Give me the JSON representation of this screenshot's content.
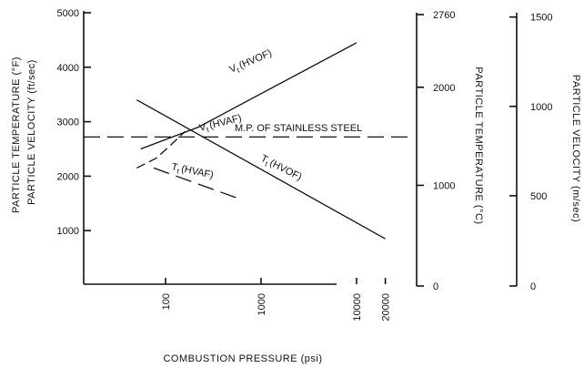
{
  "chart_data": {
    "type": "line",
    "x_axis": {
      "label": "COMBUSTION PRESSURE (psi)",
      "scale": "log",
      "ticks": [
        100,
        1000,
        10000,
        20000
      ],
      "tick_labels": [
        "100",
        "1000",
        "10000",
        "20000"
      ]
    },
    "y_axis_left": {
      "labels": [
        "PARTICLE TEMPERATURE (°F)",
        "PARTICLE VELOCITY (ft/sec)"
      ],
      "ticks": [
        1000,
        2000,
        3000,
        4000,
        5000
      ],
      "tick_labels": [
        "1000",
        "2000",
        "3000",
        "4000",
        "5000"
      ],
      "range": [
        0,
        5000
      ]
    },
    "y_axis_right_1": {
      "label": "PARTICLE TEMPERATURE (°C)",
      "ticks": [
        0,
        1000,
        2000,
        2760
      ],
      "tick_labels": [
        "0",
        "1000",
        "2000",
        "2760"
      ]
    },
    "y_axis_right_2": {
      "label": "PARTICLE VELOCITY (m/sec)",
      "ticks": [
        0,
        500,
        1000,
        1500
      ],
      "tick_labels": [
        "0",
        "500",
        "1000",
        "1500"
      ]
    },
    "series": [
      {
        "name": "V_t (HVOF)",
        "x": [
          55,
          220,
          10000
        ],
        "y": [
          2500,
          2900,
          4450
        ]
      },
      {
        "name": "T_t (HVOF)",
        "x": [
          50,
          20000
        ],
        "y": [
          3400,
          850
        ]
      },
      {
        "name": "V_t (HVAF)",
        "x": [
          50,
          80,
          110,
          160
        ],
        "y": [
          2150,
          2330,
          2550,
          2820
        ]
      },
      {
        "name": "T_t (HVAF)",
        "x": [
          75,
          600
        ],
        "y": [
          2150,
          1580
        ]
      }
    ],
    "reference_lines": [
      {
        "name": "M.P. OF STAINLESS STEEL",
        "y": 2720
      }
    ]
  },
  "labels": {
    "vt_hvof": "V",
    "vt_hvof_rest": "(HVOF)",
    "tt_hvof": "T",
    "tt_hvof_rest": "(HVOF)",
    "vt_hvaf": "V",
    "vt_hvaf_rest": "(HVAF)",
    "tt_hvaf": "T",
    "tt_hvaf_rest": "(HVAF)",
    "subscript": "t",
    "melting_point": "M.P.  OF  STAINLESS  STEEL"
  },
  "colors": {
    "ink": "#111111",
    "background": "#ffffff"
  }
}
